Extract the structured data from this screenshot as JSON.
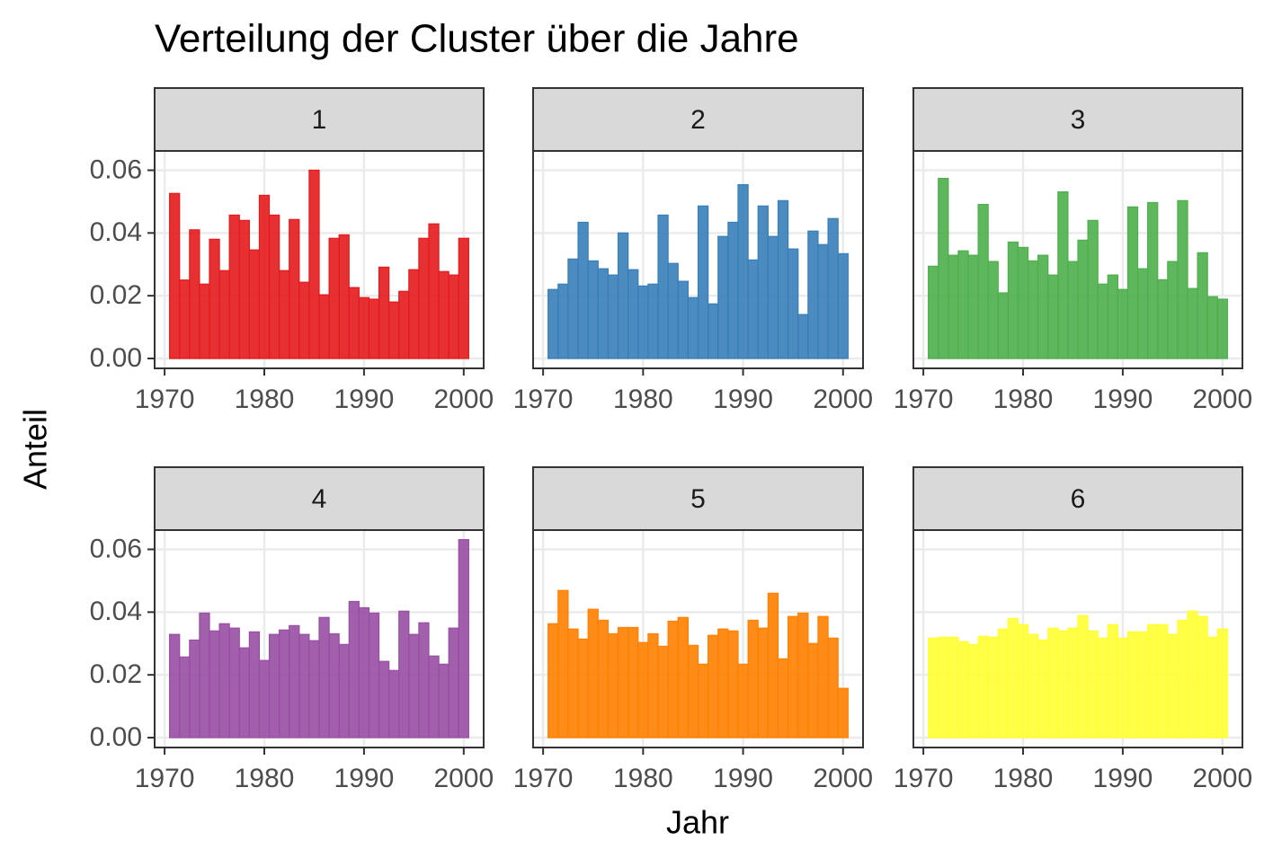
{
  "chart_data": {
    "type": "bar",
    "facet": true,
    "title": "Verteilung der Cluster über die Jahre",
    "x_label": "Jahr",
    "y_label": "Anteil",
    "x": [
      1971,
      1972,
      1973,
      1974,
      1975,
      1976,
      1977,
      1978,
      1979,
      1980,
      1981,
      1982,
      1983,
      1984,
      1985,
      1986,
      1987,
      1988,
      1989,
      1990,
      1991,
      1992,
      1993,
      1994,
      1995,
      1996,
      1997,
      1998,
      1999,
      2000
    ],
    "xlim": [
      1969,
      2002
    ],
    "xticks": [
      1970,
      1980,
      1990,
      2000
    ],
    "ylim": [
      -0.00315,
      0.06615
    ],
    "yticks": [
      {
        "value": 0,
        "label": "0.00"
      },
      0.02,
      0.04,
      0.06
    ],
    "grid": true,
    "series": [
      {
        "name": "1",
        "color": "#e41a1c",
        "values": [
          0.0526,
          0.025,
          0.041,
          0.0237,
          0.038,
          0.028,
          0.0457,
          0.044,
          0.0346,
          0.052,
          0.0457,
          0.028,
          0.0443,
          0.0243,
          0.06,
          0.0203,
          0.0383,
          0.0394,
          0.0226,
          0.0194,
          0.0189,
          0.0291,
          0.018,
          0.0214,
          0.0283,
          0.0383,
          0.0429,
          0.0277,
          0.0266,
          0.0383
        ]
      },
      {
        "name": "2",
        "color": "#377eb8",
        "values": [
          0.022,
          0.0237,
          0.0317,
          0.0434,
          0.0311,
          0.0286,
          0.0266,
          0.04,
          0.0283,
          0.0231,
          0.0237,
          0.0457,
          0.0303,
          0.0246,
          0.0194,
          0.0486,
          0.0174,
          0.0389,
          0.0434,
          0.0554,
          0.0314,
          0.0486,
          0.0389,
          0.0503,
          0.0349,
          0.014,
          0.0406,
          0.0363,
          0.0446,
          0.0334
        ]
      },
      {
        "name": "3",
        "color": "#4daf4a",
        "values": [
          0.0294,
          0.0574,
          0.0329,
          0.0343,
          0.0329,
          0.0491,
          0.0309,
          0.0209,
          0.0371,
          0.0354,
          0.0311,
          0.0329,
          0.0266,
          0.0531,
          0.0309,
          0.0377,
          0.044,
          0.0237,
          0.0266,
          0.022,
          0.0483,
          0.0286,
          0.0497,
          0.0251,
          0.0309,
          0.0503,
          0.0223,
          0.0337,
          0.0197,
          0.0189
        ]
      },
      {
        "name": "4",
        "color": "#984ea3",
        "values": [
          0.0329,
          0.0257,
          0.0311,
          0.0397,
          0.034,
          0.0363,
          0.0349,
          0.0286,
          0.0337,
          0.0246,
          0.0329,
          0.0343,
          0.0357,
          0.0329,
          0.0309,
          0.0383,
          0.0331,
          0.0297,
          0.0434,
          0.0414,
          0.0397,
          0.0243,
          0.0214,
          0.0403,
          0.0329,
          0.0366,
          0.026,
          0.0234,
          0.0349,
          0.0631
        ]
      },
      {
        "name": "5",
        "color": "#ff7f00",
        "values": [
          0.0363,
          0.0469,
          0.0346,
          0.0314,
          0.0409,
          0.0374,
          0.0331,
          0.0351,
          0.0351,
          0.0303,
          0.0331,
          0.0291,
          0.0371,
          0.0383,
          0.0294,
          0.0234,
          0.0326,
          0.0346,
          0.034,
          0.0234,
          0.0374,
          0.0349,
          0.046,
          0.0251,
          0.0386,
          0.0397,
          0.03,
          0.0386,
          0.0317,
          0.0157
        ]
      },
      {
        "name": "6",
        "color": "#ffff33",
        "values": [
          0.0317,
          0.032,
          0.032,
          0.0306,
          0.0297,
          0.0323,
          0.032,
          0.0346,
          0.038,
          0.036,
          0.0329,
          0.0311,
          0.0349,
          0.034,
          0.0349,
          0.0389,
          0.034,
          0.0317,
          0.036,
          0.0317,
          0.0337,
          0.0337,
          0.036,
          0.036,
          0.0329,
          0.0374,
          0.0403,
          0.0386,
          0.032,
          0.0346
        ]
      }
    ]
  }
}
